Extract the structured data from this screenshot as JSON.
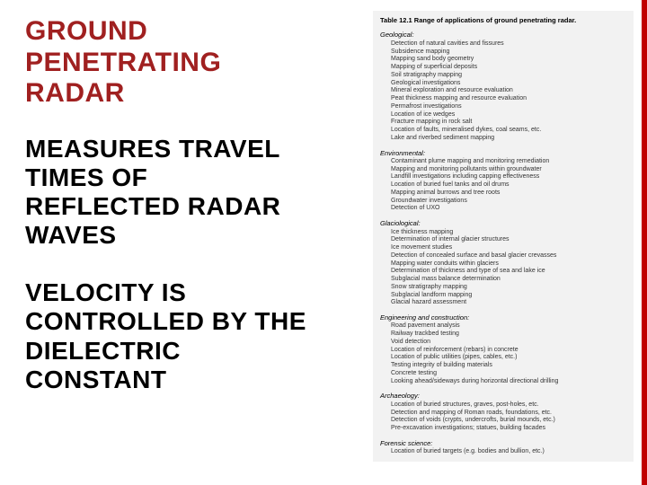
{
  "left": {
    "title_l1": "GROUND",
    "title_l2": "PENETRATING",
    "title_l3": "RADAR",
    "sub1_l1": "MEASURES TRAVEL",
    "sub1_l2": "TIMES OF",
    "sub1_l3": "REFLECTED RADAR",
    "sub1_l4": "WAVES",
    "sub2_l1": "VELOCITY IS",
    "sub2_l2": "CONTROLLED BY THE",
    "sub2_l3": "DIELECTRIC",
    "sub2_l4": "CONSTANT"
  },
  "table": {
    "caption": "Table 12.1 Range of applications of ground penetrating radar.",
    "sections": [
      {
        "name": "Geological:",
        "items": [
          "Detection of natural cavities and fissures",
          "Subsidence mapping",
          "Mapping sand body geometry",
          "Mapping of superficial deposits",
          "Soil stratigraphy mapping",
          "Geological investigations",
          "Mineral exploration and resource evaluation",
          "Peat thickness mapping and resource evaluation",
          "Permafrost investigations",
          "Location of ice wedges",
          "Fracture mapping in rock salt",
          "Location of faults, mineralised dykes, coal seams, etc.",
          "Lake and riverbed sediment mapping"
        ]
      },
      {
        "name": "Environmental:",
        "items": [
          "Contaminant plume mapping and monitoring remediation",
          "Mapping and monitoring pollutants within groundwater",
          "Landfill investigations including capping effectiveness",
          "Location of buried fuel tanks and oil drums",
          "Mapping animal burrows and tree roots",
          "Groundwater investigations",
          "Detection of UXO"
        ]
      },
      {
        "name": "Glaciological:",
        "items": [
          "Ice thickness mapping",
          "Determination of internal glacier structures",
          "Ice movement studies",
          "Detection of concealed surface and basal glacier crevasses",
          "Mapping water conduits within glaciers",
          "Determination of thickness and type of sea and lake ice",
          "Subglacial mass balance determination",
          "Snow stratigraphy mapping",
          "Subglacial landform mapping",
          "Glacial hazard assessment"
        ]
      },
      {
        "name": "Engineering and construction:",
        "items": [
          "Road pavement analysis",
          "Railway trackbed testing",
          "Void detection",
          "Location of reinforcement (rebars) in concrete",
          "Location of public utilities (pipes, cables, etc.)",
          "Testing integrity of building materials",
          "Concrete testing",
          "Looking ahead/sideways during horizontal directional drilling"
        ]
      },
      {
        "name": "Archaeology:",
        "items": [
          "Location of buried structures, graves, post-holes, etc.",
          "Detection and mapping of Roman roads, foundations, etc.",
          "Detection of voids (crypts, undercrofts, burial mounds, etc.)",
          "Pre-excavation investigations; statues, building facades"
        ]
      },
      {
        "name": "Forensic science:",
        "items": [
          "Location of buried targets (e.g. bodies and bullion, etc.)"
        ]
      }
    ]
  },
  "colors": {
    "title": "#a02020",
    "text": "#000000",
    "accent_bar": "#c00000",
    "table_bg": "#f2f2f2"
  }
}
